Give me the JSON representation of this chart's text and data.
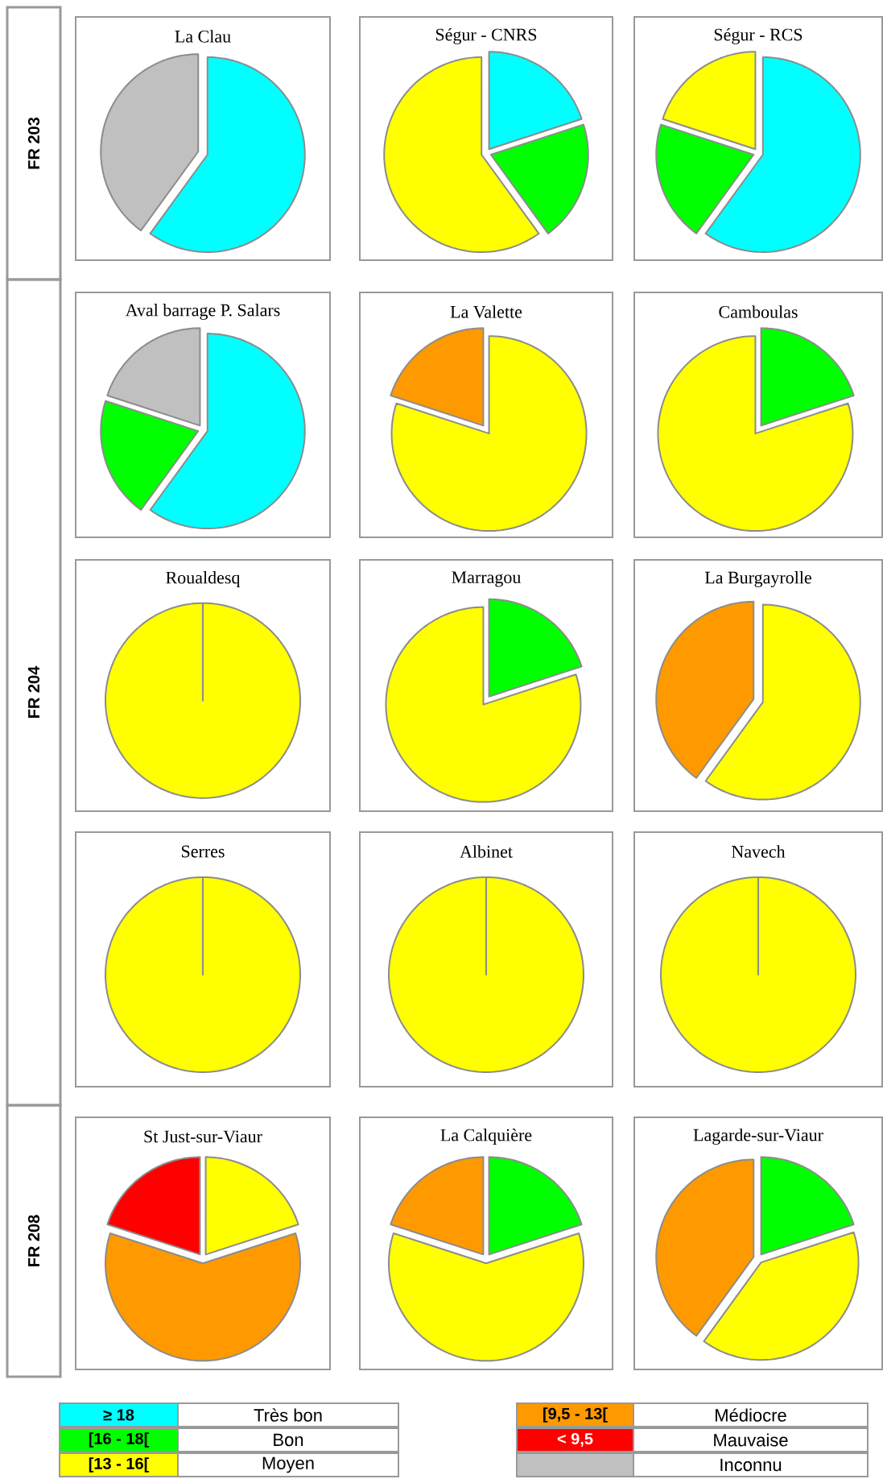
{
  "chart_data": [
    {
      "type": "pie",
      "title": "La Clau",
      "categories": [
        null,
        null
      ],
      "values": [
        60,
        40
      ],
      "colors": [
        "#00ffff",
        "#c0c0c0"
      ]
    },
    {
      "type": "pie",
      "title": "Ségur - CNRS",
      "categories": [
        null,
        null,
        null
      ],
      "values": [
        20,
        20,
        60
      ],
      "colors": [
        "#00ffff",
        "#00ff00",
        "#ffff00"
      ]
    },
    {
      "type": "pie",
      "title": "Ségur - RCS",
      "categories": [
        null,
        null,
        null
      ],
      "values": [
        60,
        20,
        20
      ],
      "colors": [
        "#00ffff",
        "#00ff00",
        "#ffff00"
      ]
    },
    {
      "type": "pie",
      "title": "Aval barrage P. Salars",
      "categories": [
        null,
        null,
        null
      ],
      "values": [
        60,
        20,
        20
      ],
      "colors": [
        "#00ffff",
        "#00ff00",
        "#c0c0c0"
      ]
    },
    {
      "type": "pie",
      "title": "La Valette",
      "categories": [
        null,
        null
      ],
      "values": [
        80,
        20
      ],
      "colors": [
        "#ffff00",
        "#ff9900"
      ]
    },
    {
      "type": "pie",
      "title": "Camboulas",
      "categories": [
        null,
        null
      ],
      "values": [
        20,
        80
      ],
      "colors": [
        "#00ff00",
        "#ffff00"
      ]
    },
    {
      "type": "pie",
      "title": "Roualdesq",
      "categories": [
        null
      ],
      "values": [
        100
      ],
      "colors": [
        "#ffff00"
      ]
    },
    {
      "type": "pie",
      "title": "Marragou",
      "categories": [
        null,
        null
      ],
      "values": [
        20,
        80
      ],
      "colors": [
        "#00ff00",
        "#ffff00"
      ]
    },
    {
      "type": "pie",
      "title": "La Burgayrolle",
      "categories": [
        null,
        null
      ],
      "values": [
        60,
        40
      ],
      "colors": [
        "#ffff00",
        "#ff9900"
      ]
    },
    {
      "type": "pie",
      "title": "Serres",
      "categories": [
        null
      ],
      "values": [
        100
      ],
      "colors": [
        "#ffff00"
      ]
    },
    {
      "type": "pie",
      "title": "Albinet",
      "categories": [
        null
      ],
      "values": [
        100
      ],
      "colors": [
        "#ffff00"
      ]
    },
    {
      "type": "pie",
      "title": "Navech",
      "categories": [
        null
      ],
      "values": [
        100
      ],
      "colors": [
        "#ffff00"
      ]
    },
    {
      "type": "pie",
      "title": "St Just-sur-Viaur",
      "categories": [
        null,
        null,
        null
      ],
      "values": [
        20,
        60,
        20
      ],
      "colors": [
        "#ffff00",
        "#ff9900",
        "#ff0000"
      ]
    },
    {
      "type": "pie",
      "title": "La Calquière",
      "categories": [
        null,
        null,
        null
      ],
      "values": [
        20,
        60,
        20
      ],
      "colors": [
        "#00ff00",
        "#ffff00",
        "#ff9900"
      ]
    },
    {
      "type": "pie",
      "title": "Lagarde-sur-Viaur",
      "categories": [
        null,
        null,
        null
      ],
      "values": [
        20,
        40,
        40
      ],
      "colors": [
        "#00ff00",
        "#ffff00",
        "#ff9900"
      ]
    },
    {
      "type": "other",
      "annotations": [
        "FR 203",
        "FR 204",
        "FR 208"
      ]
    },
    {
      "type": "other",
      "categories": [
        "≥ 18",
        "[16 - 18[",
        "[13 - 16[",
        "[9,5 - 13[",
        "< 9,5",
        null
      ],
      "colors": [
        "#00ffff",
        "#00ff00",
        "#ffff00",
        "#ff9900",
        "#ff0000",
        "#c0c0c0"
      ],
      "annotations": [
        "Très bon",
        "Bon",
        "Moyen",
        "Médiocre",
        "Mauvaise",
        "Inconnu"
      ]
    }
  ]
}
